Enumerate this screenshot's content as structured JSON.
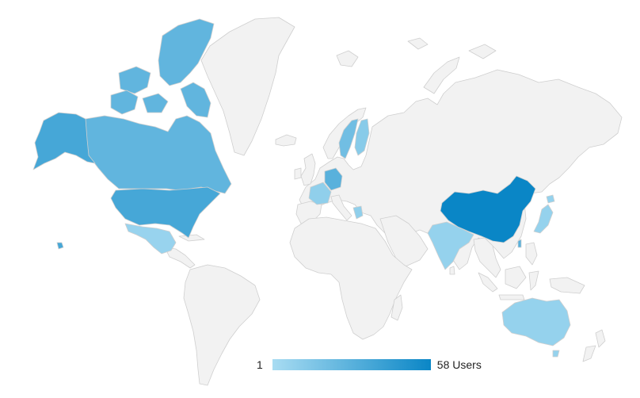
{
  "colors": {
    "background": "#ffffff",
    "no_data": "#f2f2f2",
    "border": "#cfcfcf",
    "scale_min_color": "#a8dcf2",
    "scale_max_color": "#0a86c6"
  },
  "legend": {
    "min_label": "1",
    "max_label": "58 Users"
  },
  "map_data": {
    "type": "choropleth",
    "projection": "mercator-world",
    "scale": {
      "min": 1,
      "max": 58,
      "unit": "Users"
    },
    "regions": [
      {
        "id": "china",
        "level": 1.0
      },
      {
        "id": "usa",
        "level": 0.62
      },
      {
        "id": "alaska",
        "level": 0.62
      },
      {
        "id": "hawaii",
        "level": 0.62
      },
      {
        "id": "canada",
        "level": 0.45
      },
      {
        "id": "canada-arctic",
        "level": 0.45
      },
      {
        "id": "germany",
        "level": 0.5
      },
      {
        "id": "sweden",
        "level": 0.35
      },
      {
        "id": "finland",
        "level": 0.2
      },
      {
        "id": "france",
        "level": 0.15
      },
      {
        "id": "greece",
        "level": 0.15
      },
      {
        "id": "mexico",
        "level": 0.1
      },
      {
        "id": "india",
        "level": 0.12
      },
      {
        "id": "japan",
        "level": 0.12
      },
      {
        "id": "australia",
        "level": 0.12
      },
      {
        "id": "taiwan",
        "level": 0.5
      }
    ]
  }
}
